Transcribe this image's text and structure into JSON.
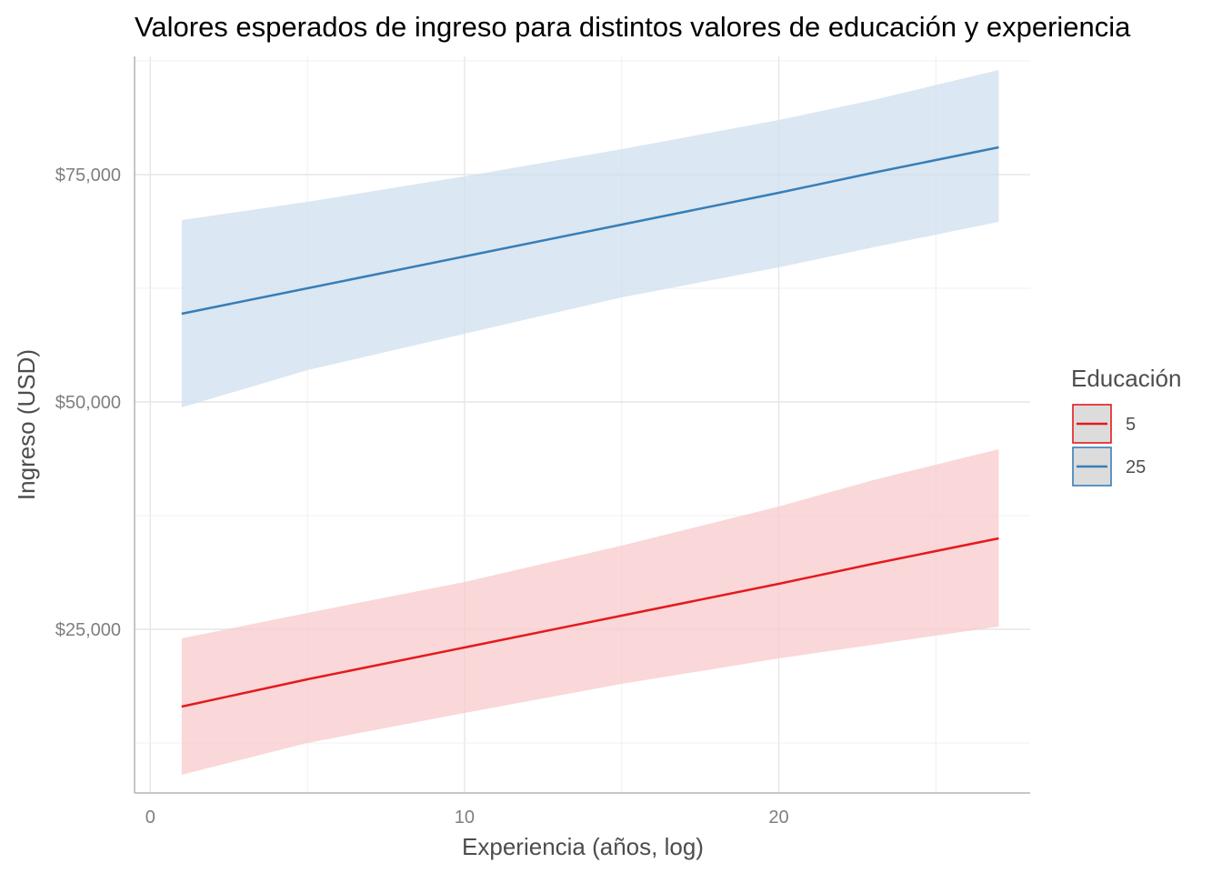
{
  "chart_data": {
    "type": "line",
    "title": "Valores esperados de ingreso para distintos valores de educación y experiencia",
    "xlabel": "Experiencia (años, log)",
    "ylabel": "Ingreso (USD)",
    "xlim": [
      -0.5,
      28
    ],
    "ylim": [
      7000,
      88000
    ],
    "x_ticks": [
      0,
      10,
      20
    ],
    "x_tick_labels": [
      "0",
      "10",
      "20"
    ],
    "y_ticks": [
      25000,
      50000,
      75000
    ],
    "y_tick_labels": [
      "$25,000",
      "$50,000",
      "$75,000"
    ],
    "grid": true,
    "legend": {
      "title": "Educación",
      "position": "right"
    },
    "x": [
      1,
      5,
      10,
      15,
      20,
      23,
      27
    ],
    "series": [
      {
        "name": "5",
        "color": "#e41a1c",
        "ribbon_color": "#f8c9cb",
        "values": [
          16500,
          19500,
          23000,
          26500,
          30000,
          32200,
          35000
        ],
        "lower": [
          9000,
          12500,
          15800,
          19000,
          21800,
          23300,
          25300
        ],
        "upper": [
          24000,
          26800,
          30200,
          34200,
          38500,
          41400,
          44800
        ]
      },
      {
        "name": "25",
        "color": "#377eb8",
        "ribbon_color": "#cfdfee",
        "values": [
          59700,
          62500,
          66000,
          69500,
          73000,
          75200,
          78000
        ],
        "lower": [
          49400,
          53500,
          57500,
          61500,
          64800,
          67000,
          69800
        ],
        "upper": [
          70000,
          72000,
          74800,
          77800,
          81000,
          83200,
          86500
        ]
      }
    ]
  }
}
